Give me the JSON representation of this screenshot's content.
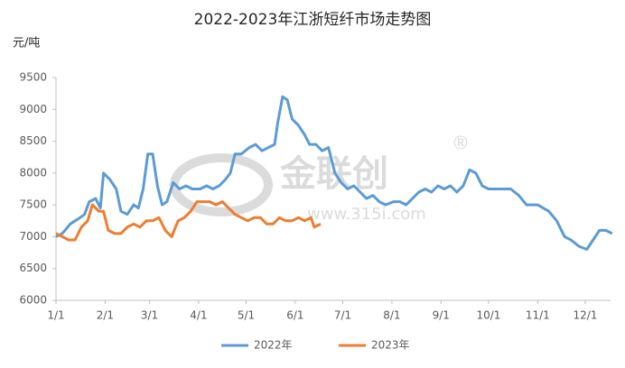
{
  "chart_data": {
    "type": "line",
    "title": "2022-2023年江浙短纤市场走势图",
    "y_label": "元/吨",
    "watermark": {
      "brand": "金联创",
      "mark": "®",
      "url": "www.315i.com"
    },
    "xlim": [
      "1/1",
      "12/17"
    ],
    "xticks": [
      "1/1",
      "2/1",
      "3/1",
      "4/1",
      "5/1",
      "6/1",
      "7/1",
      "8/1",
      "9/1",
      "10/1",
      "11/1",
      "12/1"
    ],
    "ylim": [
      6000,
      9500
    ],
    "yticks": [
      6000,
      6500,
      7000,
      7500,
      8000,
      8500,
      9000,
      9500
    ],
    "grid": false,
    "legend": "bottom",
    "series": [
      {
        "name": "2022年",
        "color": "#5b9bd5",
        "x": [
          "1/1",
          "1/5",
          "1/10",
          "1/15",
          "1/19",
          "1/22",
          "1/26",
          "1/29",
          "1/31",
          "2/4",
          "2/8",
          "2/11",
          "2/15",
          "2/19",
          "2/22",
          "2/25",
          "2/28",
          "3/3",
          "3/6",
          "3/9",
          "3/12",
          "3/16",
          "3/20",
          "3/24",
          "3/28",
          "4/2",
          "4/6",
          "4/10",
          "4/14",
          "4/18",
          "4/21",
          "4/24",
          "4/28",
          "5/3",
          "5/7",
          "5/11",
          "5/15",
          "5/19",
          "5/21",
          "5/24",
          "5/27",
          "5/30",
          "6/3",
          "6/7",
          "6/10",
          "6/14",
          "6/18",
          "6/22",
          "6/26",
          "6/30",
          "7/4",
          "7/8",
          "7/12",
          "7/16",
          "7/20",
          "7/24",
          "7/28",
          "8/2",
          "8/6",
          "8/10",
          "8/14",
          "8/18",
          "8/22",
          "8/26",
          "8/30",
          "9/3",
          "9/7",
          "9/11",
          "9/15",
          "9/19",
          "9/23",
          "9/27",
          "10/1",
          "10/8",
          "10/15",
          "10/20",
          "10/25",
          "11/1",
          "11/8",
          "11/13",
          "11/18",
          "11/22",
          "11/27",
          "12/2",
          "12/6",
          "12/10",
          "12/14",
          "12/18"
        ],
        "values": [
          7000,
          7050,
          7200,
          7280,
          7350,
          7550,
          7600,
          7450,
          8000,
          7900,
          7750,
          7400,
          7350,
          7500,
          7450,
          7750,
          8300,
          8300,
          7800,
          7500,
          7550,
          7850,
          7750,
          7800,
          7750,
          7750,
          7800,
          7750,
          7800,
          7900,
          8000,
          8300,
          8300,
          8400,
          8450,
          8350,
          8400,
          8450,
          8800,
          9200,
          9150,
          8850,
          8750,
          8600,
          8450,
          8450,
          8350,
          8400,
          8000,
          7850,
          7750,
          7800,
          7700,
          7600,
          7650,
          7550,
          7500,
          7550,
          7550,
          7500,
          7600,
          7700,
          7750,
          7700,
          7800,
          7750,
          7800,
          7700,
          7800,
          8050,
          8000,
          7800,
          7750,
          7750,
          7750,
          7650,
          7500,
          7500,
          7400,
          7250,
          7000,
          6950,
          6850,
          6800,
          6950,
          7100,
          7100,
          7050
        ]
      },
      {
        "name": "2023年",
        "color": "#ed7d31",
        "x": [
          "1/1",
          "1/5",
          "1/9",
          "1/13",
          "1/17",
          "1/21",
          "1/24",
          "1/28",
          "1/31",
          "2/3",
          "2/7",
          "2/11",
          "2/15",
          "2/19",
          "2/23",
          "2/27",
          "3/3",
          "3/7",
          "3/11",
          "3/15",
          "3/19",
          "3/23",
          "3/27",
          "3/31",
          "4/4",
          "4/8",
          "4/12",
          "4/16",
          "4/20",
          "4/24",
          "4/28",
          "5/2",
          "5/6",
          "5/10",
          "5/14",
          "5/18",
          "5/22",
          "5/26",
          "5/30",
          "6/3",
          "6/7",
          "6/11",
          "6/13",
          "6/17"
        ],
        "values": [
          7050,
          7000,
          6950,
          6950,
          7150,
          7250,
          7500,
          7400,
          7400,
          7100,
          7050,
          7050,
          7150,
          7200,
          7150,
          7250,
          7250,
          7300,
          7100,
          7000,
          7250,
          7300,
          7400,
          7550,
          7550,
          7550,
          7500,
          7550,
          7450,
          7350,
          7300,
          7250,
          7300,
          7300,
          7200,
          7200,
          7300,
          7250,
          7250,
          7300,
          7250,
          7300,
          7150,
          7200
        ]
      }
    ]
  }
}
